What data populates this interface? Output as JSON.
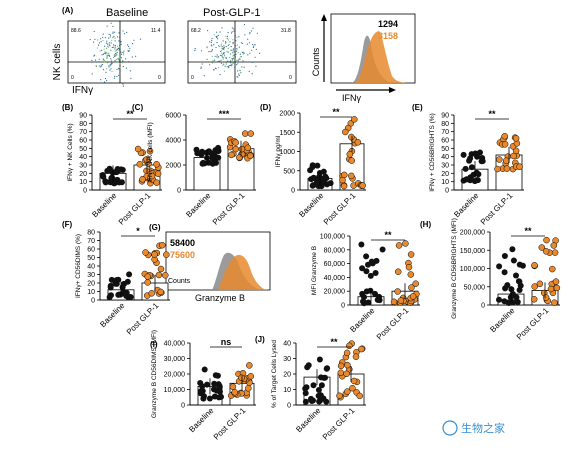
{
  "figure": {
    "panelA": {
      "letter": "(A)",
      "baseline_title": "Baseline",
      "post_title": "Post-GLP-1",
      "y_label": "NK cells",
      "x_label": "IFNγ",
      "baseline_quadrants": [
        "88.6",
        "11.4",
        "0",
        "0"
      ],
      "post_quadrants": [
        "68.2",
        "31.8",
        "0",
        "0"
      ],
      "hist_y_label": "Counts",
      "hist_x_label": "IFNγ",
      "hist_values": [
        "1294",
        "3158"
      ]
    },
    "panelB": {
      "letter": "(B)",
      "y_label": "IFNγ + NK Cells (%)",
      "ticks": [
        "0",
        "10",
        "20",
        "30",
        "40",
        "50",
        "60",
        "70",
        "80",
        "90"
      ],
      "sig": "**"
    },
    "panelC": {
      "letter": "(C)",
      "y_label": "IFNγ+ NK cells (MFI)",
      "ticks": [
        "0",
        "2000",
        "4000",
        "6000"
      ],
      "sig": "***"
    },
    "panelD": {
      "letter": "(D)",
      "y_label": "IFNγ pg/ml",
      "ticks": [
        "0",
        "500",
        "1000",
        "1500",
        "2000"
      ],
      "sig": "**"
    },
    "panelE": {
      "letter": "(E)",
      "y_label": "IFNγ + CD56BRIGHTS (%)",
      "ticks": [
        "0",
        "10",
        "20",
        "30",
        "40",
        "50",
        "60",
        "70",
        "80",
        "90"
      ],
      "sig": "**"
    },
    "panelF": {
      "letter": "(F)",
      "y_label": "IFNγ+ CD56DIMS (%)",
      "ticks": [
        "0",
        "10",
        "20",
        "30",
        "40",
        "50",
        "60",
        "70",
        "80"
      ],
      "sig": "*"
    },
    "panelG": {
      "letter": "(G)",
      "hist_values": [
        "58400",
        "75600"
      ],
      "y_label": "Counts",
      "x_label": "Granzyme B"
    },
    "panelGb": {
      "y_label": "MFI Granzyme B",
      "ticks": [
        "0",
        "20,000",
        "40,000",
        "60,000",
        "80,000",
        "100,000"
      ],
      "sig": "**"
    },
    "panelH": {
      "letter": "(H)",
      "y_label": "Granzyme B CD56BRIGHTS (MFI)",
      "ticks": [
        "0",
        "50,000",
        "100,000",
        "150,000",
        "200,000"
      ],
      "sig": "**"
    },
    "panelI": {
      "letter": "(I)",
      "y_label": "Granzyme B CD56DIMS (MFI)",
      "ticks": [
        "0",
        "10,000",
        "20,000",
        "30,000",
        "40,000"
      ],
      "sig": "ns"
    },
    "panelJ": {
      "letter": "(J)",
      "y_label": "% of Target Cells Lysed",
      "ticks": [
        "0",
        "10",
        "20",
        "30",
        "40"
      ],
      "sig": "**"
    },
    "group_labels": [
      "Baseline",
      "Post GLP-1"
    ],
    "watermark": "生物之家",
    "colors": {
      "baseline": "#111111",
      "post": "#e8892e",
      "bar": "#ffffff"
    }
  }
}
